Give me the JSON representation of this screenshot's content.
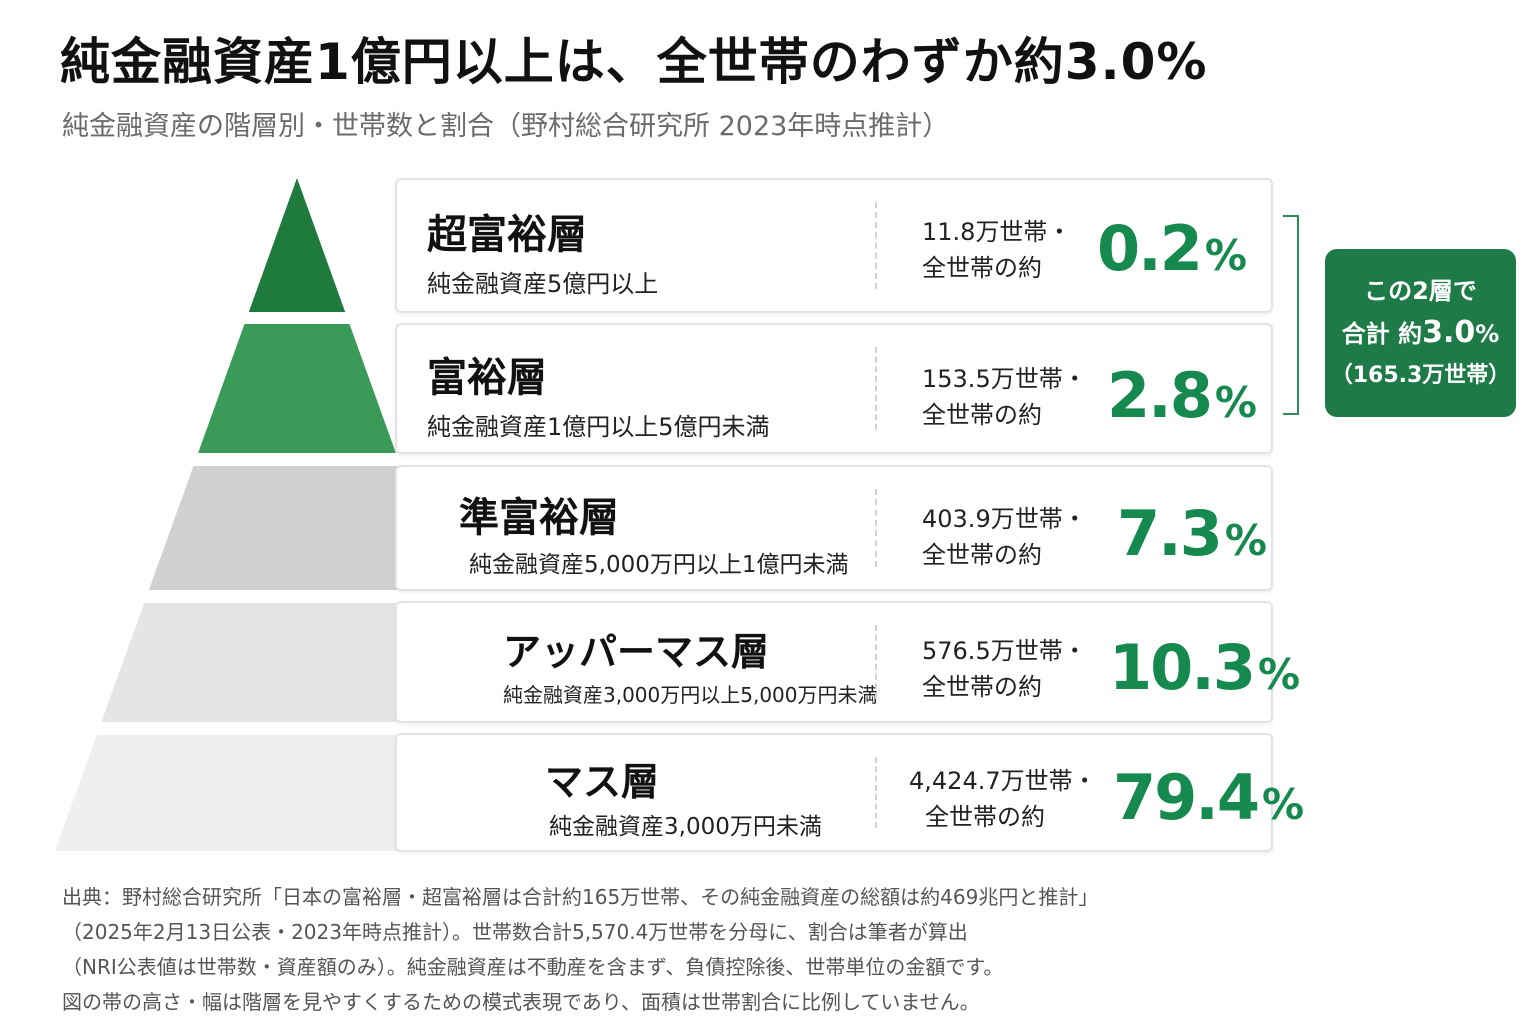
{
  "title": "純金融資産1億円以上は、全世帯のわずか約3.0%",
  "subtitle": "純金融資産の階層別・世帯数と割合（野村総合研究所 2023年時点推計）",
  "colors": {
    "accent_green": "#168a4e",
    "callout_bg": "#1e7a46",
    "tier_colors": [
      "#1e7a3d",
      "#3a9b58",
      "#cfd1d3",
      "#e4e5e7",
      "#eeeff0"
    ]
  },
  "chart_data": {
    "type": "table",
    "title": "純金融資産の階層別・世帯数と割合（野村総合研究所 2023年時点推計）",
    "categories": [
      "超富裕層",
      "富裕層",
      "準富裕層",
      "アッパーマス層",
      "マス層"
    ],
    "values": [
      0.2,
      2.8,
      7.3,
      10.3,
      79.4
    ],
    "households_man": [
      11.8,
      153.5,
      403.9,
      576.5,
      4424.7
    ],
    "tiers": [
      {
        "name": "超富裕層",
        "desc": "純金融資産5億円以上",
        "households": "11.8万世帯・",
        "prefix": "全世帯の約",
        "pct": "0.2",
        "unit": "%"
      },
      {
        "name": "富裕層",
        "desc": "純金融資産1億円以上5億円未満",
        "households": "153.5万世帯・",
        "prefix": "全世帯の約",
        "pct": "2.8",
        "unit": "%"
      },
      {
        "name": "準富裕層",
        "desc": "純金融資産5,000万円以上1億円未満",
        "households": "403.9万世帯・",
        "prefix": "全世帯の約",
        "pct": "7.3",
        "unit": "%"
      },
      {
        "name": "アッパーマス層",
        "desc": "純金融資産3,000万円以上5,000万円未満",
        "households": "576.5万世帯・",
        "prefix": "全世帯の約",
        "pct": "10.3",
        "unit": "%"
      },
      {
        "name": "マス層",
        "desc": "純金融資産3,000万円未満",
        "households": "4,424.7万世帯・",
        "prefix": "全世帯の約",
        "pct": "79.4",
        "unit": "%"
      }
    ]
  },
  "callout": {
    "line1": "この2層で",
    "line2_prefix": "合計 約",
    "line2_value": "3.0",
    "line2_unit": "%",
    "line3": "（165.3万世帯）"
  },
  "footnote": [
    "出典：野村総合研究所「日本の富裕層・超富裕層は合計約165万世帯、その純金融資産の総額は約469兆円と推計」",
    "（2025年2月13日公表・2023年時点推計）。世帯数合計5,570.4万世帯を分母に、割合は筆者が算出",
    "（NRI公表値は世帯数・資産額のみ）。純金融資産は不動産を含まず、負債控除後、世帯単位の金額です。",
    "図の帯の高さ・幅は階層を見やすくするための模式表現であり、面積は世帯割合に比例していません。"
  ]
}
